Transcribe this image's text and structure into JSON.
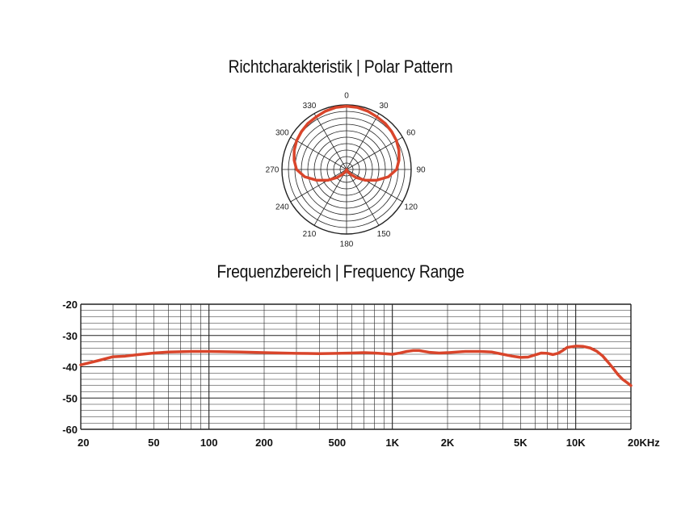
{
  "chart_data": [
    {
      "type": "polar",
      "title": "Richtcharakteristik | Polar Pattern",
      "angle_labels": [
        "0",
        "30",
        "60",
        "90",
        "120",
        "150",
        "180",
        "210",
        "240",
        "270",
        "300",
        "330"
      ],
      "angles_deg": [
        0,
        10,
        20,
        30,
        40,
        50,
        60,
        70,
        80,
        90,
        100,
        110,
        120,
        130,
        140,
        150,
        160,
        170,
        180
      ],
      "radius_normalized": [
        1.0,
        0.995,
        0.98,
        0.96,
        0.95,
        0.93,
        0.91,
        0.88,
        0.84,
        0.79,
        0.67,
        0.5,
        0.34,
        0.2,
        0.1,
        0.05,
        0.02,
        0.01,
        0.0
      ],
      "symmetric": true,
      "series_color": "#d9452b"
    },
    {
      "type": "line",
      "title": "Frequenzbereich | Frequency Range",
      "x_scale": "log",
      "xlim": [
        20,
        20000
      ],
      "ylim": [
        -60,
        -20
      ],
      "x_tick_labels": [
        "20",
        "50",
        "100",
        "200",
        "500",
        "1K",
        "2K",
        "5K",
        "10K",
        "20KHz"
      ],
      "y_tick_labels": [
        "-20",
        "-30",
        "-40",
        "-50",
        "-60"
      ],
      "grid": true,
      "series_color": "#d9452b",
      "x": [
        20,
        25,
        30,
        35,
        40,
        50,
        60,
        70,
        80,
        100,
        150,
        200,
        300,
        400,
        500,
        600,
        700,
        800,
        900,
        1000,
        1100,
        1200,
        1300,
        1400,
        1600,
        1800,
        2000,
        2500,
        3000,
        3500,
        4000,
        4500,
        5000,
        5500,
        6000,
        6500,
        7000,
        7500,
        8000,
        8500,
        9000,
        10000,
        11000,
        12000,
        13000,
        14000,
        15000,
        16000,
        17000,
        18000,
        19000,
        20000
      ],
      "y": [
        -39.4,
        -38.0,
        -36.8,
        -36.6,
        -36.2,
        -35.6,
        -35.3,
        -35.2,
        -35.1,
        -35.1,
        -35.3,
        -35.5,
        -35.7,
        -35.8,
        -35.7,
        -35.6,
        -35.5,
        -35.6,
        -35.8,
        -36.0,
        -35.6,
        -35.1,
        -34.8,
        -34.8,
        -35.4,
        -35.6,
        -35.5,
        -35.1,
        -35.1,
        -35.3,
        -36.0,
        -36.6,
        -37.0,
        -36.9,
        -36.2,
        -35.6,
        -35.7,
        -36.1,
        -35.7,
        -34.8,
        -33.8,
        -33.4,
        -33.5,
        -34.0,
        -35.0,
        -36.5,
        -38.5,
        -40.5,
        -42.5,
        -44.0,
        -45.0,
        -46.0
      ]
    }
  ]
}
